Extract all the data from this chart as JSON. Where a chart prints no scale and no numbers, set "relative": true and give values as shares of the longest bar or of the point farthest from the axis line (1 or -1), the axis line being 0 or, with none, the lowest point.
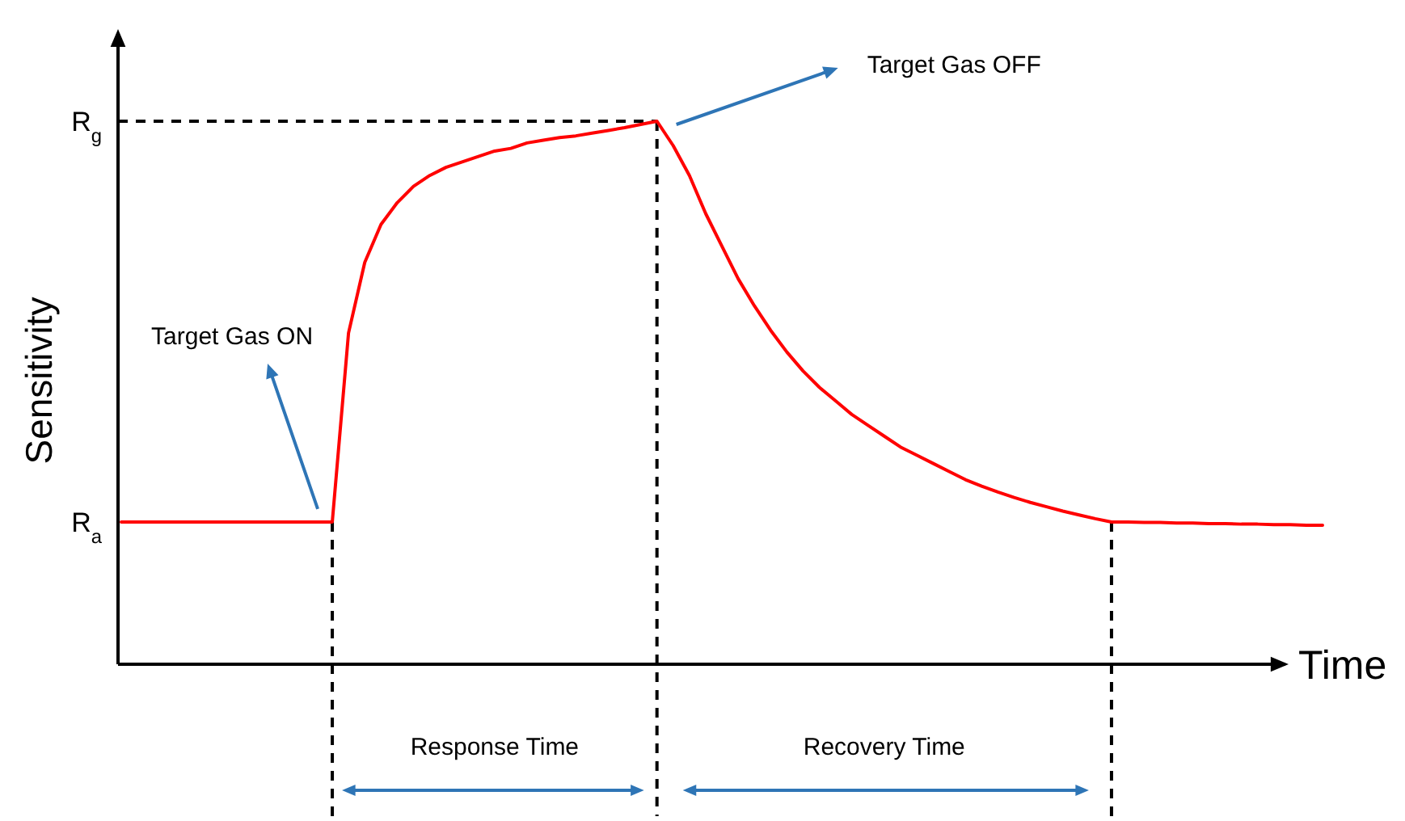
{
  "chart_data": {
    "type": "line",
    "relative": true,
    "xlabel": "Time",
    "ylabel": "Sensitivity",
    "line_style": "solid",
    "categories": [
      null,
      null,
      null,
      null,
      null,
      null,
      null,
      null,
      null,
      null,
      null,
      null,
      null,
      null,
      null,
      null,
      null,
      null,
      null,
      null,
      null,
      null,
      null,
      null,
      null,
      null,
      null,
      null,
      null,
      null,
      null,
      null,
      null,
      null,
      null,
      null,
      null,
      null,
      null,
      null,
      null,
      null,
      null,
      null,
      null,
      null,
      null,
      null,
      null,
      null,
      null,
      null,
      null,
      null,
      null,
      null,
      null,
      null,
      null,
      null,
      null,
      null,
      null,
      null,
      null,
      null,
      null,
      null,
      null,
      null,
      null,
      null,
      null,
      null,
      null
    ],
    "series": [
      {
        "color": "#ff0000",
        "values": [
          0.262,
          0.262,
          0.262,
          0.262,
          0.262,
          0.262,
          0.262,
          0.262,
          0.262,
          0.262,
          0.262,
          0.262,
          0.262,
          0.262,
          0.61,
          0.74,
          0.81,
          0.85,
          0.88,
          0.9,
          0.915,
          0.925,
          0.935,
          0.945,
          0.95,
          0.96,
          0.965,
          0.97,
          0.973,
          0.978,
          0.983,
          0.988,
          0.994,
          1,
          0.955,
          0.9,
          0.83,
          0.77,
          0.71,
          0.66,
          0.615,
          0.575,
          0.54,
          0.51,
          0.485,
          0.46,
          0.44,
          0.42,
          0.4,
          0.385,
          0.37,
          0.355,
          0.34,
          0.328,
          0.317,
          0.307,
          0.298,
          0.29,
          0.282,
          0.275,
          0.268,
          0.262,
          0.262,
          0.261,
          0.261,
          0.26,
          0.26,
          0.259,
          0.259,
          0.258,
          0.258,
          0.257,
          0.257,
          0.256,
          0.256
        ]
      }
    ],
    "annotations": [
      "R$_{g}$",
      "R$_{a}$",
      "Target Gas ON",
      "Target Gas OFF",
      "Response Time",
      "Recovery Time"
    ]
  }
}
